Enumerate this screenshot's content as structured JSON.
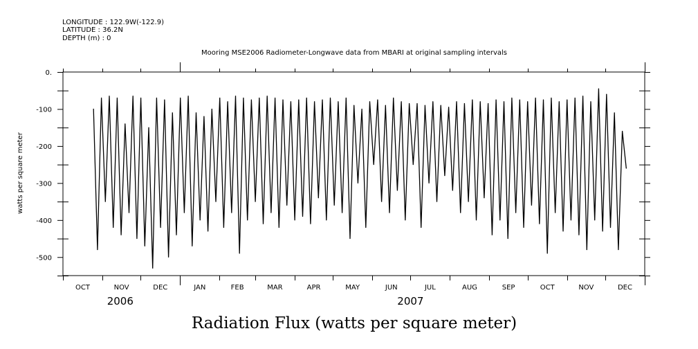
{
  "header": {
    "longitude": "LONGITUDE : 122.9W(-122.9)",
    "latitude": "LATITUDE : 36.2N",
    "depth": "DEPTH (m) : 0"
  },
  "chart_data": {
    "type": "line",
    "title": "Mooring MSE2006 Radiometer-Longwave data from MBARI at original sampling intervals",
    "xlabel": "Radiation Flux (watts per square meter)",
    "ylabel": "watts per square meter",
    "ylim": [
      -550,
      0
    ],
    "yticks": [
      0,
      -100,
      -200,
      -300,
      -400,
      -500
    ],
    "ytick_labels": [
      "0.",
      "-100",
      "-200",
      "-300",
      "-400",
      "-500"
    ],
    "xlim_days_since_2006_10_01": [
      0,
      457
    ],
    "months": [
      "OCT",
      "NOV",
      "DEC",
      "JAN",
      "FEB",
      "MAR",
      "APR",
      "MAY",
      "JUN",
      "JUL",
      "AUG",
      "SEP",
      "OCT",
      "NOV",
      "DEC"
    ],
    "month_start_days": [
      0,
      31,
      61,
      92,
      123,
      151,
      182,
      212,
      243,
      273,
      304,
      335,
      365,
      396,
      426,
      457
    ],
    "years": [
      {
        "label": "2006",
        "day": 45
      },
      {
        "label": "2007",
        "day": 273
      }
    ],
    "series": [
      {
        "name": "Radiometer-Longwave",
        "start_day": 24,
        "step_days": 3.1,
        "values": [
          -100,
          -480,
          -70,
          -350,
          -65,
          -420,
          -70,
          -440,
          -140,
          -380,
          -65,
          -450,
          -70,
          -470,
          -150,
          -530,
          -70,
          -420,
          -75,
          -500,
          -110,
          -440,
          -70,
          -380,
          -65,
          -470,
          -110,
          -400,
          -120,
          -430,
          -100,
          -350,
          -70,
          -420,
          -80,
          -380,
          -65,
          -490,
          -70,
          -400,
          -75,
          -350,
          -70,
          -410,
          -65,
          -380,
          -70,
          -420,
          -75,
          -360,
          -80,
          -400,
          -75,
          -390,
          -70,
          -410,
          -80,
          -340,
          -75,
          -400,
          -70,
          -360,
          -80,
          -380,
          -70,
          -450,
          -90,
          -300,
          -100,
          -420,
          -80,
          -250,
          -75,
          -350,
          -90,
          -380,
          -70,
          -320,
          -80,
          -400,
          -85,
          -250,
          -85,
          -420,
          -90,
          -300,
          -80,
          -350,
          -90,
          -280,
          -95,
          -320,
          -80,
          -380,
          -85,
          -350,
          -75,
          -400,
          -80,
          -340,
          -85,
          -440,
          -75,
          -400,
          -80,
          -450,
          -70,
          -380,
          -75,
          -420,
          -80,
          -360,
          -70,
          -410,
          -75,
          -490,
          -70,
          -380,
          -80,
          -430,
          -75,
          -400,
          -70,
          -440,
          -65,
          -480,
          -80,
          -400,
          -45,
          -430,
          -60,
          -420,
          -110,
          -480,
          -160,
          -260
        ]
      }
    ]
  }
}
